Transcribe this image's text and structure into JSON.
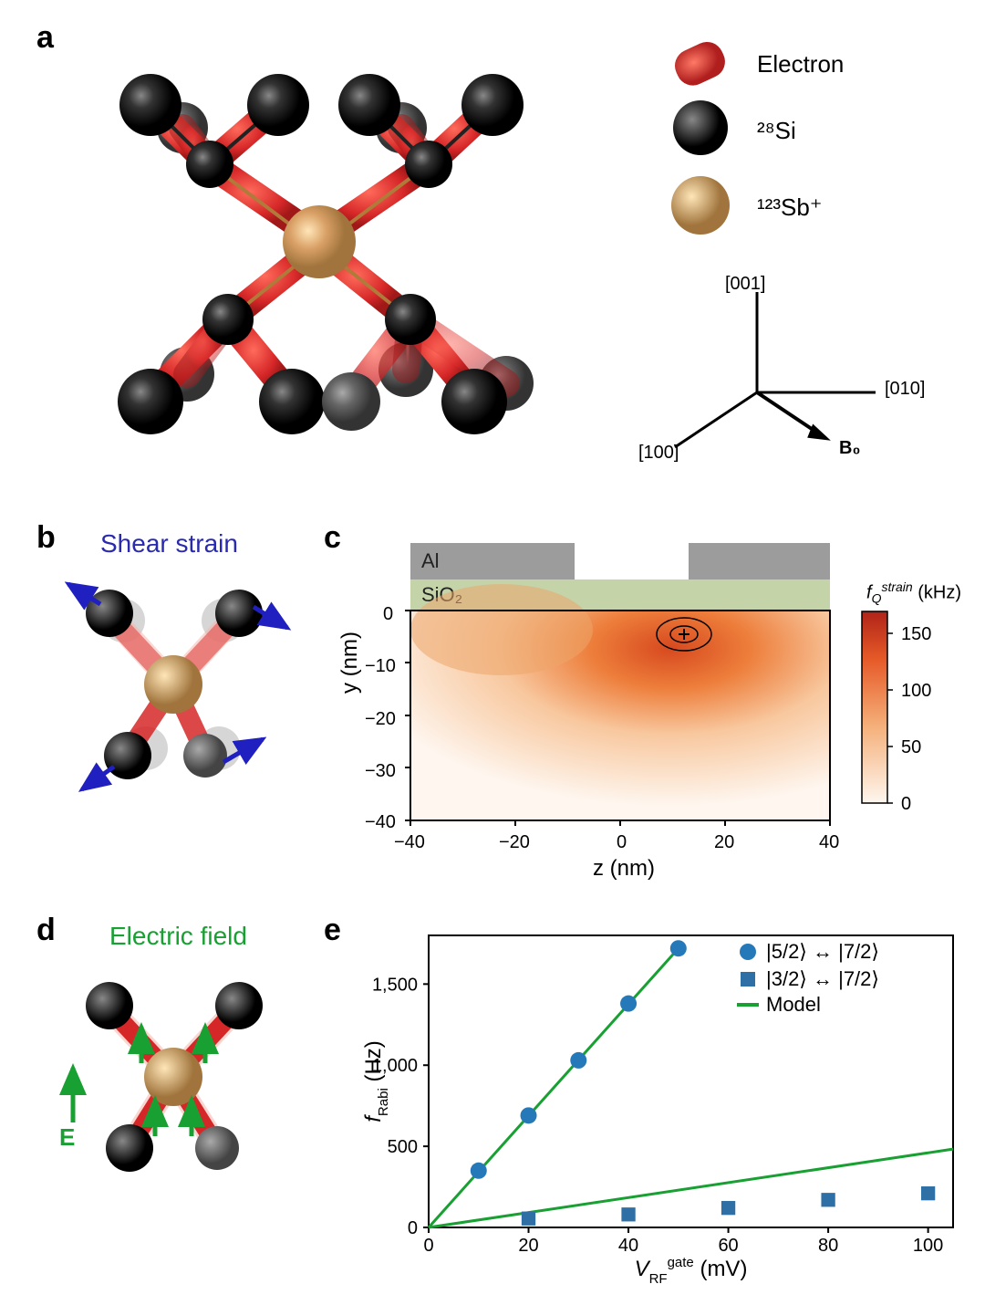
{
  "panel_a": {
    "label": "a",
    "legend": {
      "electron": "Electron",
      "si28": "²⁸Si",
      "sb123": "¹²³Sb⁺"
    },
    "axes": {
      "h1": "[001]",
      "h2": "[010]",
      "h3": "[100]",
      "B": "B₀"
    },
    "colors": {
      "electron": "#d62728",
      "si_dark": "#1a1a1a",
      "si_mid": "#555555",
      "si_light": "#7a7a7a",
      "sb": "#d9a066",
      "sb_hi": "#f0c98a"
    }
  },
  "panel_b": {
    "label": "b",
    "title": "Shear strain",
    "title_color": "#2a2ab0",
    "arrow_color": "#2020c0"
  },
  "panel_c": {
    "label": "c",
    "top_labels": {
      "al": "Al",
      "sio2": "SiO₂"
    },
    "top_colors": {
      "al": "#9c9c9c",
      "sio2": "#c4d3a8"
    },
    "cbar_title": "f_Q^strain (kHz)",
    "xlabel": "z (nm)",
    "ylabel": "y (nm)",
    "xlim": [
      -40,
      40
    ],
    "ylim": [
      -40,
      0
    ],
    "xticks": [
      -40,
      -20,
      0,
      20,
      40
    ],
    "yticks": [
      0,
      -10,
      -20,
      -30,
      -40
    ],
    "cbar_ticks": [
      0,
      50,
      100,
      150
    ],
    "cbar_max": 170,
    "heat_colors": {
      "low": "#fef6ef",
      "mid": "#f5a15e",
      "high": "#c0392b"
    },
    "marker": {
      "z": 12,
      "y": -5
    }
  },
  "panel_d": {
    "label": "d",
    "title": "Electric field",
    "title_color": "#18a032",
    "E_label": "E",
    "arrow_color": "#18a032"
  },
  "panel_e": {
    "label": "e",
    "xlabel": "V_RF^gate (mV)",
    "ylabel": "f_Rabi (Hz)",
    "xlim": [
      0,
      105
    ],
    "ylim": [
      0,
      1800
    ],
    "xticks": [
      0,
      20,
      40,
      60,
      80,
      100
    ],
    "yticks": [
      0,
      500,
      1000,
      1500
    ],
    "legend": {
      "s1": "|5/2⟩ ↔ |7/2⟩",
      "s2": "|3/2⟩ ↔ |7/2⟩",
      "model": "Model"
    },
    "colors": {
      "circle": "#2679b8",
      "square": "#2e6fa5",
      "model": "#18a032",
      "axis": "#000000"
    },
    "series_circle": {
      "x": [
        10,
        20,
        30,
        40,
        50
      ],
      "y": [
        350,
        690,
        1030,
        1380,
        1720
      ]
    },
    "series_square": {
      "x": [
        20,
        40,
        60,
        80,
        100
      ],
      "y": [
        55,
        80,
        120,
        170,
        210
      ]
    },
    "model_slopes": {
      "high": 34.4,
      "low": 4.6
    },
    "marker_size": 9,
    "line_width": 3
  },
  "typography": {
    "panel_label_pt": 34,
    "legend_pt": 26,
    "axis_label_pt": 24,
    "tick_pt": 20
  }
}
